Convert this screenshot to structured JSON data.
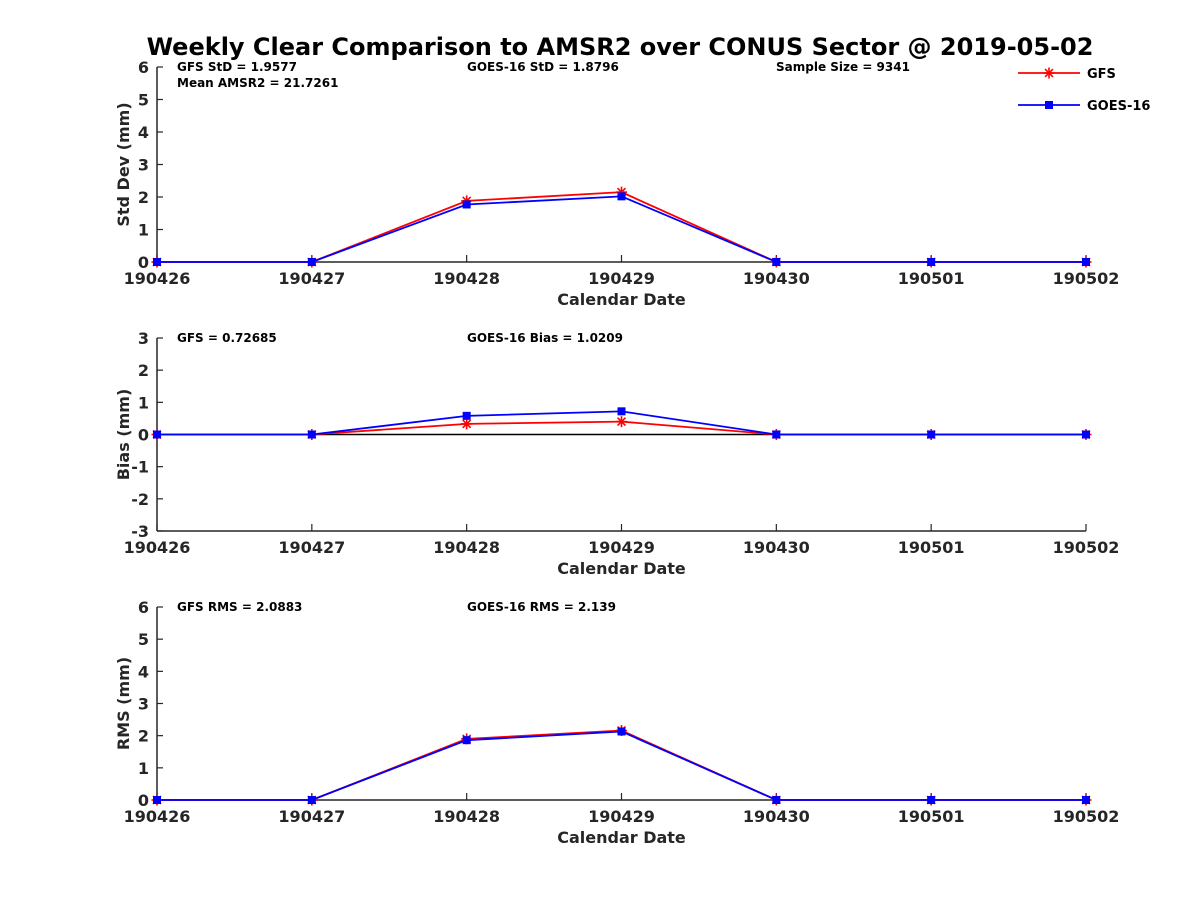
{
  "figure": {
    "title": "Weekly Clear Comparison to AMSR2 over CONUS Sector @ 2019-05-02"
  },
  "legend": {
    "placement": "top-right",
    "items": [
      {
        "label": "GFS",
        "color": "#ff0000",
        "marker": "asterisk"
      },
      {
        "label": "GOES-16",
        "color": "#0000ff",
        "marker": "square"
      }
    ]
  },
  "chart_data": [
    {
      "type": "line",
      "xlabel": "Calendar Date",
      "ylabel": "Std Dev (mm)",
      "categories": [
        "190426",
        "190427",
        "190428",
        "190429",
        "190430",
        "190501",
        "190502"
      ],
      "ylim": [
        0,
        6
      ],
      "yticks": [
        "0",
        "1",
        "2",
        "3",
        "4",
        "5",
        "6"
      ],
      "zero_line": false,
      "series": [
        {
          "name": "GFS",
          "color": "#ff0000",
          "marker": "asterisk",
          "values": [
            0,
            0,
            1.88,
            2.15,
            0,
            0,
            0
          ]
        },
        {
          "name": "GOES-16",
          "color": "#0000ff",
          "marker": "square",
          "values": [
            0,
            0,
            1.77,
            2.02,
            0,
            0,
            0
          ]
        }
      ],
      "annotations": [
        {
          "text": "GFS StD = 1.9577",
          "col": "left"
        },
        {
          "text": "Mean AMSR2 = 21.7261",
          "col": "left2"
        },
        {
          "text": "GOES-16 StD = 1.8796",
          "col": "mid"
        },
        {
          "text": "Sample Size = 9341",
          "col": "right"
        }
      ]
    },
    {
      "type": "line",
      "xlabel": "Calendar Date",
      "ylabel": "Bias (mm)",
      "categories": [
        "190426",
        "190427",
        "190428",
        "190429",
        "190430",
        "190501",
        "190502"
      ],
      "ylim": [
        -3,
        3
      ],
      "yticks": [
        "-3",
        "-2",
        "-1",
        "0",
        "1",
        "2",
        "3"
      ],
      "zero_line": true,
      "series": [
        {
          "name": "GFS",
          "color": "#ff0000",
          "marker": "asterisk",
          "values": [
            0,
            0,
            0.33,
            0.4,
            0,
            0,
            0
          ]
        },
        {
          "name": "GOES-16",
          "color": "#0000ff",
          "marker": "square",
          "values": [
            0,
            0,
            0.58,
            0.72,
            0,
            0,
            0
          ]
        }
      ],
      "annotations": [
        {
          "text": "GFS = 0.72685",
          "col": "left"
        },
        {
          "text": "GOES-16 Bias  = 1.0209",
          "col": "mid"
        }
      ]
    },
    {
      "type": "line",
      "xlabel": "Calendar Date",
      "ylabel": "RMS (mm)",
      "categories": [
        "190426",
        "190427",
        "190428",
        "190429",
        "190430",
        "190501",
        "190502"
      ],
      "ylim": [
        0,
        6
      ],
      "yticks": [
        "0",
        "1",
        "2",
        "3",
        "4",
        "5",
        "6"
      ],
      "zero_line": false,
      "series": [
        {
          "name": "GFS",
          "color": "#ff0000",
          "marker": "asterisk",
          "values": [
            0,
            0,
            1.9,
            2.16,
            0,
            0,
            0
          ]
        },
        {
          "name": "GOES-16",
          "color": "#0000ff",
          "marker": "square",
          "values": [
            0,
            0,
            1.86,
            2.13,
            0,
            0,
            0
          ]
        }
      ],
      "annotations": [
        {
          "text": "GFS RMS = 2.0883",
          "col": "left"
        },
        {
          "text": "GOES-16 RMS = 2.139",
          "col": "mid"
        }
      ]
    }
  ]
}
